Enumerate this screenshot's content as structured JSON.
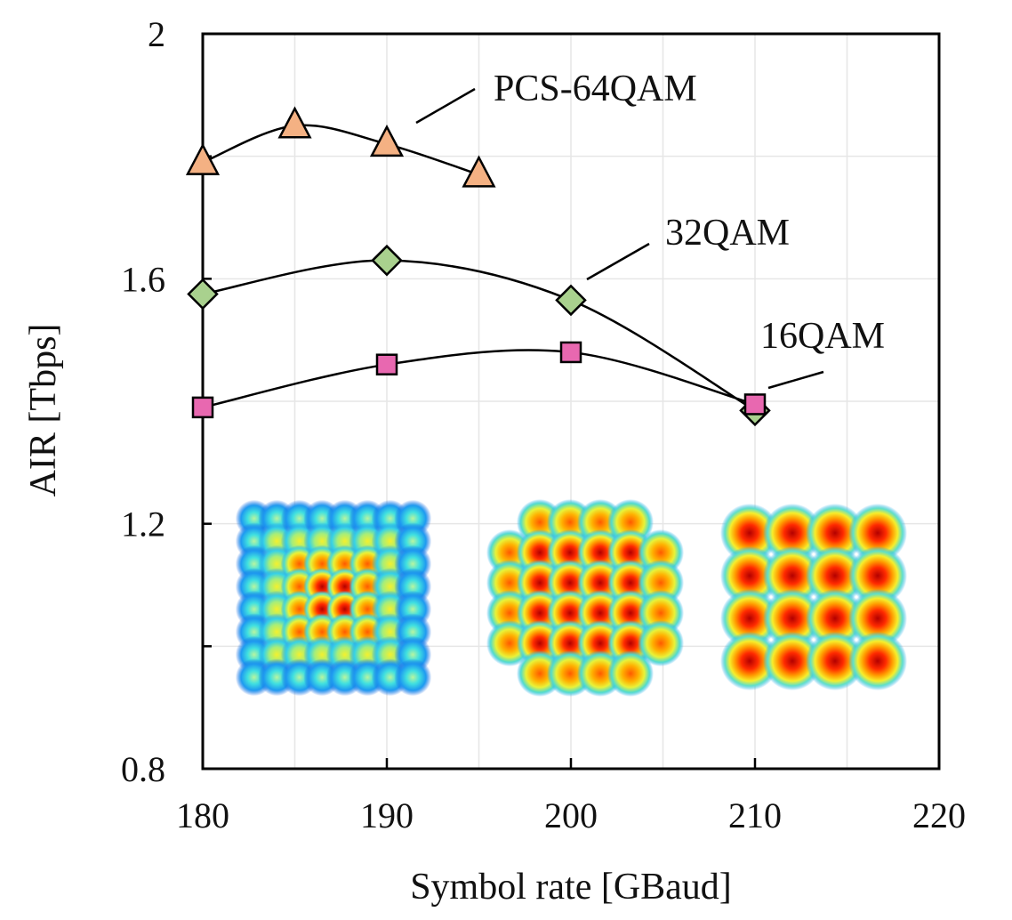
{
  "chart_data": {
    "type": "line",
    "title": "",
    "xlabel": "Symbol rate [GBaud]",
    "ylabel": "AIR [Tbps]",
    "xlim": [
      180,
      220
    ],
    "ylim": [
      0.8,
      2.0
    ],
    "x_ticks": [
      180,
      190,
      200,
      210,
      220
    ],
    "x_tick_labels": [
      "180",
      "190",
      "200",
      "210",
      "220"
    ],
    "y_ticks": [
      0.8,
      1.2,
      1.6,
      2.0
    ],
    "y_tick_labels": [
      "0.8",
      "1.2",
      "1.6",
      "2"
    ],
    "grid": true,
    "legend": "none (series labelled directly with leader lines)",
    "series": [
      {
        "name": "PCS-64QAM",
        "marker": "triangle",
        "color": "#F4B183",
        "x": [
          180,
          185,
          190,
          195
        ],
        "y": [
          1.79,
          1.85,
          1.82,
          1.77
        ]
      },
      {
        "name": "32QAM",
        "marker": "diamond",
        "color": "#A9D18E",
        "x": [
          180,
          190,
          200,
          210
        ],
        "y": [
          1.575,
          1.63,
          1.565,
          1.385
        ]
      },
      {
        "name": "16QAM",
        "marker": "square",
        "color": "#E868B0",
        "x": [
          180,
          190,
          200,
          210
        ],
        "y": [
          1.39,
          1.46,
          1.48,
          1.395
        ]
      }
    ],
    "insets": [
      {
        "name": "constellation-64qam",
        "grid": 8,
        "style": "blue-dominant"
      },
      {
        "name": "constellation-32qam",
        "grid": 6,
        "style": "red-dominant-cross"
      },
      {
        "name": "constellation-16qam",
        "grid": 4,
        "style": "red-dominant"
      }
    ]
  }
}
